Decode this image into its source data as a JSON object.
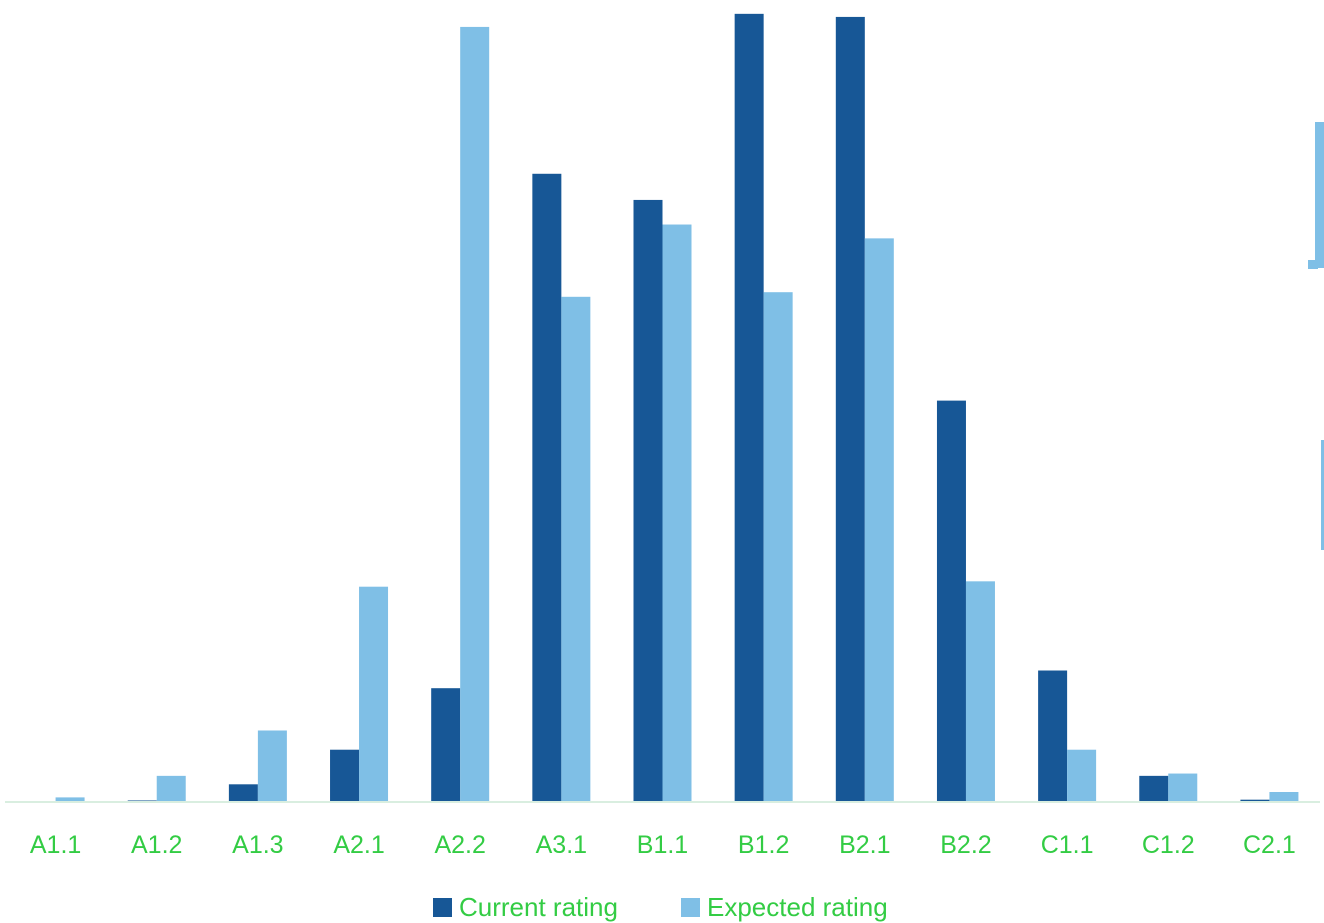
{
  "chart_data": {
    "type": "bar",
    "title": "",
    "xlabel": "",
    "ylabel": "",
    "categories": [
      "A1.1",
      "A1.2",
      "A1.3",
      "A2.1",
      "A2.2",
      "A3.1",
      "B1.1",
      "B1.2",
      "B2.1",
      "B2.2",
      "C1.1",
      "C1.2",
      "C2.1"
    ],
    "series": [
      {
        "name": "Current rating",
        "color": "#175796",
        "values": [
          0,
          0.2,
          2.3,
          6.8,
          14.8,
          81.7,
          78.3,
          102.5,
          102.1,
          52.2,
          17.1,
          3.4,
          0.3
        ]
      },
      {
        "name": "Expected rating",
        "color": "#7fbfe6",
        "values": [
          0.6,
          3.4,
          9.3,
          28.0,
          100.8,
          65.7,
          75.1,
          66.3,
          73.3,
          28.7,
          6.8,
          3.7,
          1.3
        ]
      }
    ],
    "ylim": [
      0,
      103
    ],
    "grid": false,
    "legend_position": "bottom-center",
    "axis_line_color": "#d9eee0",
    "tick_label_color": "#33cc44"
  }
}
